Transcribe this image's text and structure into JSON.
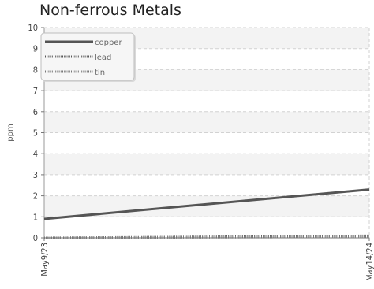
{
  "chart_data": {
    "type": "line",
    "title": "Non-ferrous Metals",
    "xlabel": "",
    "ylabel": "ppm",
    "x": [
      "May9/23",
      "May14/24"
    ],
    "ylim": [
      0,
      10
    ],
    "yticks": [
      0,
      1,
      2,
      3,
      4,
      5,
      6,
      7,
      8,
      9,
      10
    ],
    "grid": true,
    "legend_position": "top-left",
    "series": [
      {
        "name": "copper",
        "values": [
          0.9,
          2.3
        ],
        "color": "#555555",
        "style": "solid"
      },
      {
        "name": "lead",
        "values": [
          0.0,
          0.1
        ],
        "color": "#555555",
        "style": "dotted"
      },
      {
        "name": "tin",
        "values": [
          0.0,
          0.05
        ],
        "color": "#777777",
        "style": "dotted"
      }
    ]
  }
}
